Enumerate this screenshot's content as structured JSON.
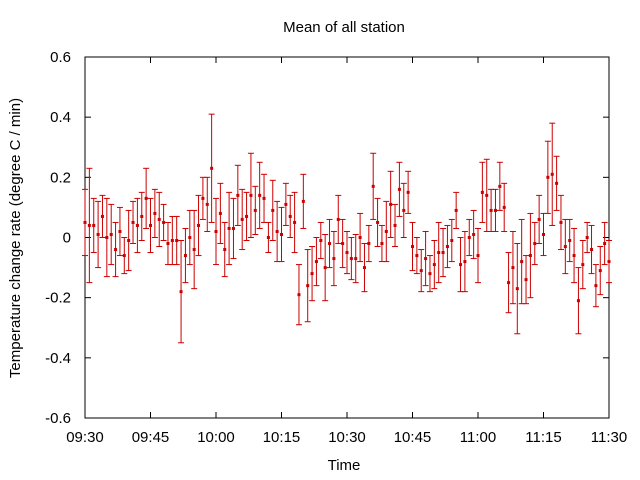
{
  "chart_data": {
    "type": "scatter",
    "title": "Mean of all station",
    "xlabel": "Time",
    "ylabel": "Temperature change rate (degree C / min)",
    "xlim": [
      "09:30",
      "11:30"
    ],
    "ylim": [
      -0.6,
      0.6
    ],
    "xticks": [
      "09:30",
      "09:45",
      "10:00",
      "10:15",
      "10:30",
      "10:45",
      "11:00",
      "11:15",
      "11:30"
    ],
    "yticks": [
      "-0.6",
      "-0.4",
      "-0.2",
      "0",
      "0.2",
      "0.4",
      "0.6"
    ],
    "grid": false,
    "legend": "none",
    "color": "#cc0000",
    "series": [
      {
        "x": [
          "09:30",
          "09:31",
          "09:32",
          "09:33",
          "09:34",
          "09:35",
          "09:36",
          "09:37",
          "09:38",
          "09:39",
          "09:40",
          "09:41",
          "09:42",
          "09:43",
          "09:44",
          "09:45",
          "09:46",
          "09:47",
          "09:48",
          "09:49",
          "09:50",
          "09:51",
          "09:52",
          "09:53",
          "09:54",
          "09:55",
          "09:56",
          "09:57",
          "09:58",
          "09:59",
          "10:00",
          "10:01",
          "10:02",
          "10:03",
          "10:04",
          "10:05",
          "10:06",
          "10:07",
          "10:08",
          "10:09",
          "10:10",
          "10:11",
          "10:12",
          "10:13",
          "10:14",
          "10:15",
          "10:16",
          "10:17",
          "10:18",
          "10:19",
          "10:20",
          "10:21",
          "10:22",
          "10:23",
          "10:24",
          "10:25",
          "10:26",
          "10:27",
          "10:28",
          "10:29",
          "10:30",
          "10:31",
          "10:32",
          "10:33",
          "10:34",
          "10:35",
          "10:36",
          "10:37",
          "10:38",
          "10:39",
          "10:40",
          "10:41",
          "10:42",
          "10:43",
          "10:44",
          "10:45",
          "10:46",
          "10:47",
          "10:48",
          "10:49",
          "10:50",
          "10:51",
          "10:52",
          "10:53",
          "10:54",
          "10:55",
          "10:56",
          "10:57",
          "10:58",
          "10:59",
          "11:00",
          "11:01",
          "11:02",
          "11:03",
          "11:04",
          "11:05",
          "11:06",
          "11:07",
          "11:08",
          "11:09",
          "11:10",
          "11:11",
          "11:12",
          "11:13",
          "11:14",
          "11:15",
          "11:16",
          "11:17",
          "11:18",
          "11:19",
          "11:20",
          "11:21",
          "11:22",
          "11:23",
          "11:24",
          "11:25",
          "11:26",
          "11:27",
          "11:28",
          "11:29",
          "11:30"
        ],
        "values": [
          0.05,
          0.04,
          0.04,
          0.01,
          0.07,
          0.0,
          0.01,
          -0.04,
          0.02,
          -0.06,
          -0.01,
          0.05,
          0.04,
          0.07,
          0.13,
          0.04,
          0.08,
          0.06,
          0.05,
          -0.02,
          -0.01,
          -0.01,
          -0.18,
          -0.06,
          0.0,
          -0.04,
          0.04,
          0.13,
          0.11,
          0.23,
          0.02,
          0.08,
          -0.04,
          0.03,
          0.03,
          0.14,
          0.06,
          0.07,
          0.14,
          0.09,
          0.14,
          0.13,
          0.0,
          0.09,
          0.02,
          0.01,
          0.11,
          0.07,
          0.05,
          -0.19,
          0.12,
          -0.16,
          -0.12,
          -0.08,
          -0.01,
          -0.1,
          -0.02,
          -0.07,
          0.06,
          -0.02,
          -0.05,
          -0.07,
          -0.07,
          0.0,
          -0.1,
          -0.02,
          0.17,
          0.05,
          -0.02,
          0.02,
          0.11,
          0.04,
          0.16,
          0.09,
          0.15,
          -0.03,
          -0.06,
          -0.11,
          -0.07,
          -0.12,
          -0.09,
          -0.05,
          -0.05,
          -0.03,
          -0.01,
          0.09,
          -0.09,
          -0.08,
          0.0,
          0.01,
          -0.06,
          0.15,
          0.14,
          0.09,
          0.09,
          0.17,
          0.1,
          -0.15,
          -0.1,
          -0.17,
          -0.08,
          -0.14,
          -0.06,
          -0.02,
          0.06,
          0.01,
          0.2,
          0.21,
          0.18,
          0.05,
          -0.03,
          -0.01,
          -0.06,
          -0.21,
          -0.09,
          0.0,
          -0.04,
          -0.16,
          -0.11,
          -0.02,
          -0.08
        ],
        "errors": [
          0.11,
          0.19,
          0.09,
          0.11,
          0.07,
          0.13,
          0.1,
          0.09,
          0.08,
          0.06,
          0.1,
          0.07,
          0.09,
          0.08,
          0.1,
          0.09,
          0.08,
          0.09,
          0.06,
          0.07,
          0.08,
          0.08,
          0.17,
          0.09,
          0.09,
          0.13,
          0.1,
          0.07,
          0.09,
          0.18,
          0.11,
          0.1,
          0.09,
          0.12,
          0.1,
          0.1,
          0.1,
          0.08,
          0.14,
          0.08,
          0.11,
          0.08,
          0.05,
          0.1,
          0.1,
          0.09,
          0.07,
          0.07,
          0.1,
          0.1,
          0.09,
          0.12,
          0.09,
          0.08,
          0.06,
          0.11,
          0.08,
          0.09,
          0.08,
          0.08,
          0.07,
          0.07,
          0.08,
          0.08,
          0.08,
          0.06,
          0.11,
          0.08,
          0.06,
          0.1,
          0.11,
          0.07,
          0.09,
          0.09,
          0.07,
          0.08,
          0.06,
          0.07,
          0.09,
          0.06,
          0.08,
          0.1,
          0.08,
          0.07,
          0.07,
          0.06,
          0.09,
          0.1,
          0.06,
          0.08,
          0.09,
          0.1,
          0.12,
          0.07,
          0.07,
          0.08,
          0.08,
          0.1,
          0.12,
          0.15,
          0.14,
          0.08,
          0.14,
          0.07,
          0.08,
          0.07,
          0.12,
          0.17,
          0.09,
          0.09,
          0.09,
          0.07,
          0.09,
          0.11,
          0.08,
          0.05,
          0.08,
          0.07,
          0.08,
          0.07,
          0.07
        ]
      }
    ]
  }
}
